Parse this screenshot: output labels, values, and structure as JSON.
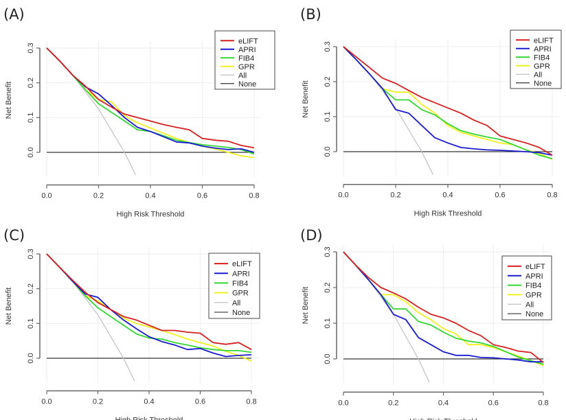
{
  "chart_data": [
    {
      "panel_label": "(A)",
      "type": "line",
      "xlabel": "High Risk Threshold",
      "ylabel": "Net Benefit",
      "xlim": [
        0,
        0.8
      ],
      "ylim": [
        -0.07,
        0.3
      ],
      "xticks": [
        "0.0",
        "0.2",
        "0.4",
        "0.6",
        "0.8"
      ],
      "yticks": [
        "0.0",
        "0.1",
        "0.2",
        "0.3"
      ],
      "grid": true,
      "legend_position": "top-right",
      "x": [
        0,
        0.05,
        0.1,
        0.15,
        0.2,
        0.25,
        0.3,
        0.35,
        0.4,
        0.45,
        0.5,
        0.55,
        0.6,
        0.65,
        0.7,
        0.75,
        0.8
      ],
      "series": [
        {
          "name": "eLIFT",
          "color": "#d42020",
          "values": [
            0.3,
            0.263,
            0.222,
            0.19,
            0.152,
            0.13,
            0.11,
            0.1,
            0.09,
            0.08,
            0.072,
            0.065,
            0.04,
            0.035,
            0.032,
            0.02,
            0.013
          ]
        },
        {
          "name": "APRI",
          "color": "#1a1ad0",
          "values": [
            0.3,
            0.263,
            0.222,
            0.188,
            0.168,
            0.135,
            0.1,
            0.072,
            0.06,
            0.045,
            0.03,
            0.027,
            0.018,
            0.012,
            0.008,
            0.01,
            0.0
          ]
        },
        {
          "name": "FIB4",
          "color": "#33d633",
          "values": [
            0.3,
            0.263,
            0.222,
            0.18,
            0.14,
            0.115,
            0.09,
            0.065,
            0.06,
            0.048,
            0.035,
            0.028,
            0.022,
            0.018,
            0.014,
            0.008,
            -0.005
          ]
        },
        {
          "name": "GPR",
          "color": "#f0f020",
          "values": [
            0.3,
            0.263,
            0.222,
            0.18,
            0.152,
            0.145,
            0.105,
            0.085,
            0.07,
            0.055,
            0.04,
            0.028,
            0.018,
            0.01,
            0.0,
            -0.01,
            -0.015
          ]
        },
        {
          "name": "All",
          "color": "#c0c0c0",
          "x": [
            0,
            0.1,
            0.2,
            0.3,
            0.343
          ],
          "values": [
            0.3,
            0.222,
            0.125,
            0,
            -0.065
          ]
        },
        {
          "name": "None",
          "color": "#333333",
          "x": [
            0,
            0.8
          ],
          "values": [
            0,
            0
          ]
        }
      ]
    },
    {
      "panel_label": "(B)",
      "type": "line",
      "xlabel": "High Risk Threshold",
      "ylabel": "Net Benefit",
      "xlim": [
        0,
        0.8
      ],
      "ylim": [
        -0.07,
        0.3
      ],
      "xticks": [
        "0.0",
        "0.2",
        "0.4",
        "0.6",
        "0.8"
      ],
      "yticks": [
        "0.0",
        "0.1",
        "0.2",
        "0.3"
      ],
      "grid": true,
      "legend_position": "top-right",
      "x": [
        0,
        0.05,
        0.1,
        0.15,
        0.2,
        0.25,
        0.3,
        0.35,
        0.4,
        0.45,
        0.5,
        0.55,
        0.6,
        0.65,
        0.7,
        0.75,
        0.8
      ],
      "series": [
        {
          "name": "eLIFT",
          "color": "#d42020",
          "values": [
            0.3,
            0.27,
            0.24,
            0.21,
            0.195,
            0.175,
            0.155,
            0.14,
            0.125,
            0.11,
            0.09,
            0.075,
            0.045,
            0.035,
            0.025,
            0.012,
            -0.01
          ]
        },
        {
          "name": "APRI",
          "color": "#1a1ad0",
          "values": [
            0.3,
            0.262,
            0.222,
            0.18,
            0.12,
            0.11,
            0.075,
            0.04,
            0.025,
            0.012,
            0.008,
            0.005,
            0.004,
            0.002,
            0.0,
            -0.003,
            -0.01
          ]
        },
        {
          "name": "FIB4",
          "color": "#33d633",
          "values": [
            0.3,
            0.262,
            0.222,
            0.18,
            0.148,
            0.148,
            0.12,
            0.105,
            0.08,
            0.06,
            0.05,
            0.042,
            0.035,
            0.02,
            0.005,
            -0.01,
            -0.02
          ]
        },
        {
          "name": "GPR",
          "color": "#f0f020",
          "values": [
            0.3,
            0.262,
            0.222,
            0.18,
            0.17,
            0.17,
            0.135,
            0.11,
            0.075,
            0.055,
            0.045,
            0.035,
            0.025,
            0.02,
            0.005,
            -0.005,
            -0.022
          ]
        },
        {
          "name": "All",
          "color": "#c0c0c0",
          "x": [
            0,
            0.1,
            0.2,
            0.3,
            0.343
          ],
          "values": [
            0.3,
            0.222,
            0.125,
            0,
            -0.065
          ]
        },
        {
          "name": "None",
          "color": "#333333",
          "x": [
            0,
            0.8
          ],
          "values": [
            0,
            0
          ]
        }
      ]
    },
    {
      "panel_label": "(C)",
      "type": "line",
      "xlabel": "High Risk Threshold",
      "ylabel": "Net Benefit",
      "xlim": [
        0,
        0.8
      ],
      "ylim": [
        -0.07,
        0.3
      ],
      "xticks": [
        "0.0",
        "0.2",
        "0.4",
        "0.6",
        "0.8"
      ],
      "yticks": [
        "0.0",
        "0.1",
        "0.2",
        "0.3"
      ],
      "grid": true,
      "legend_position": "top-right",
      "x": [
        0,
        0.05,
        0.1,
        0.15,
        0.2,
        0.25,
        0.3,
        0.35,
        0.4,
        0.45,
        0.5,
        0.55,
        0.6,
        0.65,
        0.7,
        0.75,
        0.8
      ],
      "series": [
        {
          "name": "eLIFT",
          "color": "#d42020",
          "values": [
            0.3,
            0.262,
            0.225,
            0.19,
            0.16,
            0.14,
            0.12,
            0.11,
            0.095,
            0.08,
            0.08,
            0.075,
            0.072,
            0.045,
            0.04,
            0.045,
            0.025
          ]
        },
        {
          "name": "APRI",
          "color": "#1a1ad0",
          "values": [
            0.3,
            0.262,
            0.222,
            0.185,
            0.175,
            0.14,
            0.11,
            0.085,
            0.062,
            0.048,
            0.038,
            0.025,
            0.028,
            0.015,
            0.005,
            0.008,
            0.01
          ]
        },
        {
          "name": "FIB4",
          "color": "#33d633",
          "values": [
            0.3,
            0.262,
            0.222,
            0.18,
            0.145,
            0.12,
            0.095,
            0.07,
            0.058,
            0.055,
            0.045,
            0.038,
            0.03,
            0.025,
            0.022,
            0.022,
            0.017
          ]
        },
        {
          "name": "GPR",
          "color": "#f0f020",
          "values": [
            0.3,
            0.262,
            0.222,
            0.18,
            0.165,
            0.14,
            0.115,
            0.1,
            0.09,
            0.08,
            0.068,
            0.055,
            0.045,
            0.035,
            0.02,
            0.008,
            -0.008
          ]
        },
        {
          "name": "All",
          "color": "#c0c0c0",
          "x": [
            0,
            0.1,
            0.2,
            0.3,
            0.343
          ],
          "values": [
            0.3,
            0.222,
            0.125,
            0,
            -0.065
          ]
        },
        {
          "name": "None",
          "color": "#333333",
          "x": [
            0,
            0.8
          ],
          "values": [
            0,
            0
          ]
        }
      ]
    },
    {
      "panel_label": "(D)",
      "type": "line",
      "xlabel": "High Risk Threshold",
      "ylabel": "Net Benefit",
      "xlim": [
        0,
        0.8
      ],
      "ylim": [
        -0.07,
        0.3
      ],
      "xticks": [
        "0.0",
        "0.2",
        "0.4",
        "0.6",
        "0.8"
      ],
      "yticks": [
        "0.0",
        "0.1",
        "0.2",
        "0.3"
      ],
      "grid": true,
      "legend_position": "top-right",
      "x": [
        0,
        0.05,
        0.1,
        0.15,
        0.2,
        0.25,
        0.3,
        0.35,
        0.4,
        0.45,
        0.5,
        0.55,
        0.6,
        0.65,
        0.7,
        0.75,
        0.8
      ],
      "series": [
        {
          "name": "eLIFT",
          "color": "#d42020",
          "values": [
            0.3,
            0.262,
            0.228,
            0.2,
            0.185,
            0.168,
            0.145,
            0.125,
            0.115,
            0.1,
            0.08,
            0.065,
            0.04,
            0.032,
            0.022,
            0.018,
            -0.01
          ]
        },
        {
          "name": "APRI",
          "color": "#1a1ad0",
          "values": [
            0.3,
            0.262,
            0.222,
            0.18,
            0.125,
            0.11,
            0.06,
            0.04,
            0.02,
            0.01,
            0.01,
            0.004,
            0.003,
            0.0,
            -0.003,
            -0.008,
            -0.008
          ]
        },
        {
          "name": "FIB4",
          "color": "#33d633",
          "values": [
            0.3,
            0.262,
            0.222,
            0.18,
            0.14,
            0.14,
            0.105,
            0.095,
            0.075,
            0.058,
            0.05,
            0.045,
            0.035,
            0.02,
            0.005,
            -0.005,
            -0.015
          ]
        },
        {
          "name": "GPR",
          "color": "#f0f020",
          "values": [
            0.3,
            0.262,
            0.222,
            0.18,
            0.18,
            0.16,
            0.13,
            0.11,
            0.085,
            0.07,
            0.04,
            0.04,
            0.032,
            0.02,
            0.008,
            -0.005,
            -0.018
          ]
        },
        {
          "name": "All",
          "color": "#c0c0c0",
          "x": [
            0,
            0.1,
            0.2,
            0.3,
            0.343
          ],
          "values": [
            0.3,
            0.222,
            0.125,
            0,
            -0.065
          ]
        },
        {
          "name": "None",
          "color": "#333333",
          "x": [
            0,
            0.8
          ],
          "values": [
            0,
            0
          ]
        }
      ]
    }
  ]
}
